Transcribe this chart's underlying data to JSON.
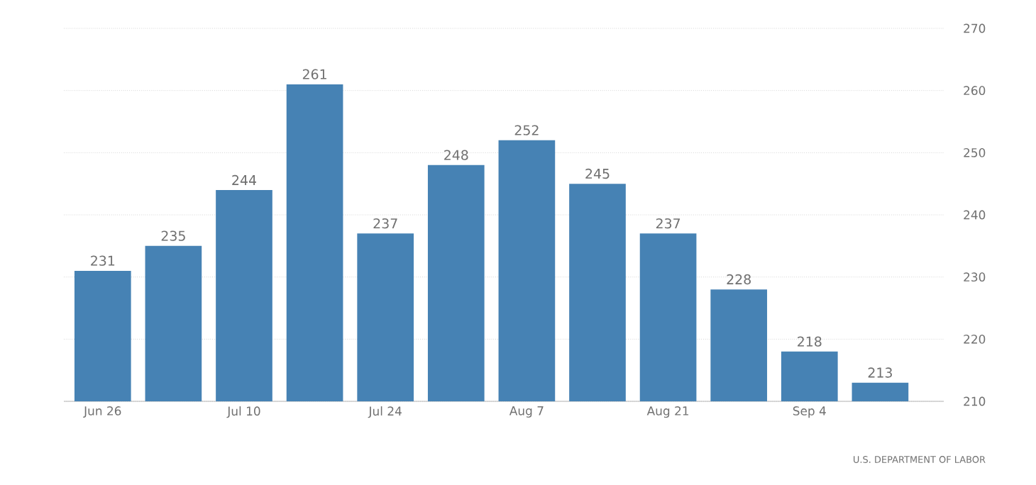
{
  "chart_data": {
    "type": "bar",
    "categories": [
      "Jun 26",
      null,
      "Jul 10",
      null,
      "Jul 24",
      null,
      "Aug 7",
      null,
      "Aug 21",
      null,
      "Sep 4",
      null
    ],
    "values": [
      231,
      235,
      244,
      261,
      237,
      248,
      252,
      245,
      237,
      228,
      218,
      213
    ],
    "color": "#4682b4",
    "ylim": [
      210,
      270
    ],
    "yticks": [
      210,
      220,
      230,
      240,
      250,
      260,
      270
    ],
    "grid": "y",
    "data_labels": true,
    "annotations": [
      "U.S. DEPARTMENT OF LABOR"
    ]
  }
}
